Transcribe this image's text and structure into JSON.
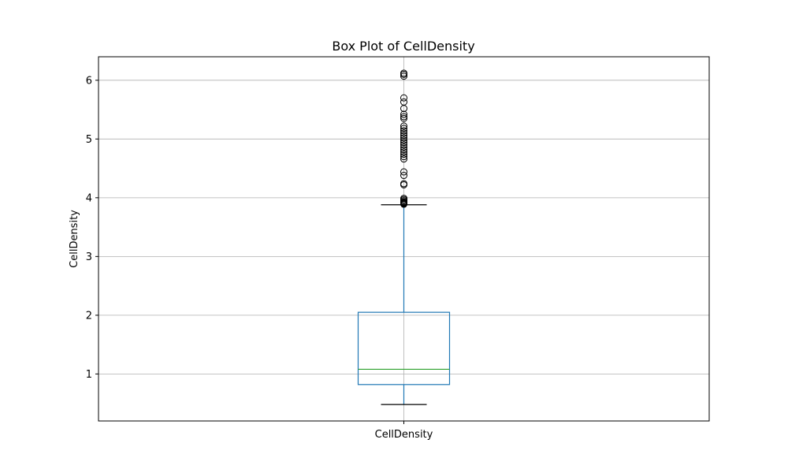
{
  "chart_data": {
    "type": "box",
    "title": "Box Plot of CellDensity",
    "xlabel": "",
    "ylabel": "CellDensity",
    "categories": [
      "CellDensity"
    ],
    "ylim": [
      0.2,
      6.4
    ],
    "yticks": [
      1,
      2,
      3,
      4,
      5,
      6
    ],
    "grid": true,
    "box": {
      "whisker_low": 0.48,
      "q1": 0.82,
      "median": 1.08,
      "q3": 2.05,
      "whisker_high": 3.88
    },
    "outliers": [
      3.89,
      3.9,
      3.91,
      3.92,
      3.93,
      3.95,
      3.97,
      3.99,
      4.22,
      4.24,
      4.38,
      4.44,
      4.66,
      4.7,
      4.74,
      4.78,
      4.82,
      4.86,
      4.9,
      4.94,
      4.98,
      5.02,
      5.06,
      5.1,
      5.14,
      5.18,
      5.22,
      5.35,
      5.38,
      5.42,
      5.52,
      5.63,
      5.7,
      6.07,
      6.1,
      6.12
    ],
    "colors": {
      "box": "#1f77b4",
      "median": "#2ca02c",
      "cap": "#000000",
      "flier": "#000000",
      "grid": "#b0b0b0"
    }
  }
}
